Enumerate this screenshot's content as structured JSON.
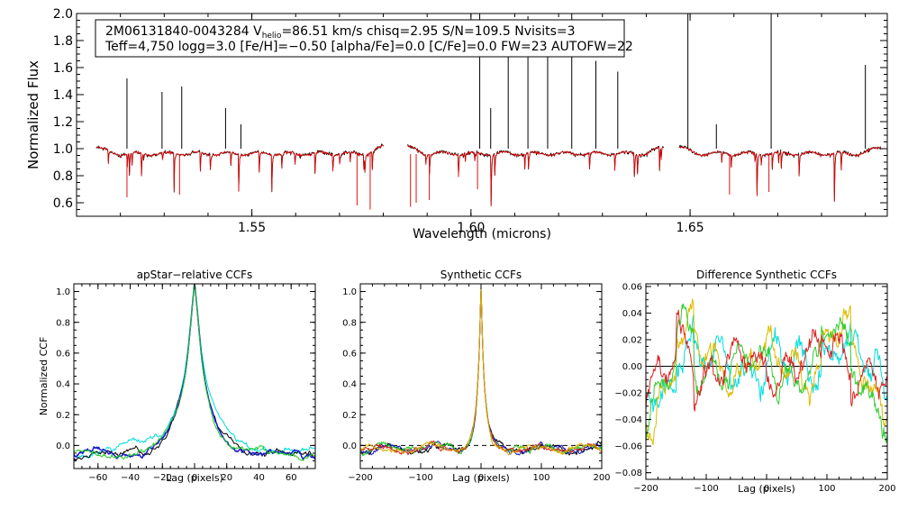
{
  "figure": {
    "background": "#ffffff",
    "axis_color": "#000000"
  },
  "chart_data": [
    {
      "type": "line",
      "title": "",
      "xlabel": "Wavelength (microns)",
      "ylabel": "Normalized Flux",
      "xlim": [
        1.51,
        1.695
      ],
      "ylim": [
        0.5,
        2.0
      ],
      "xticks": [
        "1.55",
        "1.60",
        "1.65"
      ],
      "yticks": [
        "0.6",
        "0.8",
        "1.0",
        "1.2",
        "1.4",
        "1.6",
        "1.8",
        "2.0"
      ],
      "annotation": {
        "star_id": "2M06131840-0043284",
        "vhelio_prefix": "V",
        "vhelio_sub": "helio",
        "vhelio_rest": "=86.51 km/s",
        "chisq": "chisq=2.95",
        "snr": "S/N=109.5",
        "nvisits": "Nvisits=3",
        "params_line": "Teff=4,750 logg=3.0 [Fe/H]=−0.50 [alpha/Fe]=0.0 [C/Fe]=0.0 FW=23 AUTOFW=22"
      },
      "chips": [
        [
          1.5145,
          1.58
        ],
        [
          1.5855,
          1.644
        ],
        [
          1.6475,
          1.6935
        ]
      ],
      "emission_spikes": [
        {
          "x": 1.5215,
          "y": 1.52
        },
        {
          "x": 1.5295,
          "y": 1.42
        },
        {
          "x": 1.534,
          "y": 1.46
        },
        {
          "x": 1.544,
          "y": 1.3
        },
        {
          "x": 1.5475,
          "y": 1.18
        },
        {
          "x": 1.602,
          "y": 2.0
        },
        {
          "x": 1.6045,
          "y": 1.3
        },
        {
          "x": 1.6085,
          "y": 1.9
        },
        {
          "x": 1.613,
          "y": 1.98
        },
        {
          "x": 1.6175,
          "y": 1.7
        },
        {
          "x": 1.623,
          "y": 2.0
        },
        {
          "x": 1.6285,
          "y": 1.65
        },
        {
          "x": 1.6335,
          "y": 1.57
        },
        {
          "x": 1.6495,
          "y": 2.0
        },
        {
          "x": 1.656,
          "y": 1.18
        },
        {
          "x": 1.6685,
          "y": 2.0
        },
        {
          "x": 1.69,
          "y": 1.62
        }
      ],
      "series": [
        {
          "name": "observed",
          "color": "#000000"
        },
        {
          "name": "model",
          "color": "#e00000"
        }
      ]
    },
    {
      "type": "line",
      "title": "apStar−relative CCFs",
      "xlabel": "Lag (pixels)",
      "ylabel": "Normalized CCF",
      "xlim": [
        -75,
        75
      ],
      "ylim": [
        -0.15,
        1.05
      ],
      "xticks": [
        "−60",
        "−40",
        "−20",
        "0",
        "20",
        "40",
        "60"
      ],
      "xtick_values": [
        -60,
        -40,
        -20,
        0,
        20,
        40,
        60
      ],
      "yticks": [
        "0.0",
        "0.2",
        "0.4",
        "0.6",
        "0.8",
        "1.0"
      ],
      "series": [
        {
          "name": "ccf-cyan",
          "color": "#00dddd"
        },
        {
          "name": "ccf-black",
          "color": "#000000"
        },
        {
          "name": "ccf-blue",
          "color": "#1a1acc"
        },
        {
          "name": "ccf-green",
          "color": "#22cc22"
        }
      ]
    },
    {
      "type": "line",
      "title": "Synthetic CCFs",
      "xlabel": "Lag (pixels)",
      "ylabel": "",
      "xlim": [
        -200,
        200
      ],
      "ylim": [
        -0.15,
        1.05
      ],
      "xticks": [
        "−200",
        "−100",
        "0",
        "100",
        "200"
      ],
      "xtick_values": [
        -200,
        -100,
        0,
        100,
        200
      ],
      "yticks": [
        "0.0",
        "0.2",
        "0.4",
        "0.6",
        "0.8",
        "1.0"
      ],
      "series": [
        {
          "name": "ccf-black",
          "color": "#000000"
        },
        {
          "name": "ccf-blue",
          "color": "#1a1acc"
        },
        {
          "name": "ccf-green",
          "color": "#22cc22"
        },
        {
          "name": "ccf-red",
          "color": "#dd2222"
        },
        {
          "name": "ccf-yellow",
          "color": "#ddaa00"
        }
      ]
    },
    {
      "type": "line",
      "title": "Difference Synthetic CCFs",
      "xlabel": "Lag (pixels)",
      "ylabel": "",
      "xlim": [
        -200,
        200
      ],
      "ylim": [
        -0.085,
        0.062
      ],
      "xticks": [
        "−200",
        "−100",
        "0",
        "100",
        "200"
      ],
      "xtick_values": [
        -200,
        -100,
        0,
        100,
        200
      ],
      "yticks": [
        "−0.08",
        "−0.06",
        "−0.04",
        "−0.02",
        "0.00",
        "0.02",
        "0.04",
        "0.06"
      ],
      "ytick_values": [
        -0.08,
        -0.06,
        -0.04,
        -0.02,
        0.0,
        0.02,
        0.04,
        0.06
      ],
      "series": [
        {
          "name": "diff-cyan",
          "color": "#00dddd"
        },
        {
          "name": "diff-yellow",
          "color": "#ddbb00"
        },
        {
          "name": "diff-green",
          "color": "#33cc33"
        },
        {
          "name": "diff-red",
          "color": "#dd2222"
        }
      ]
    }
  ]
}
